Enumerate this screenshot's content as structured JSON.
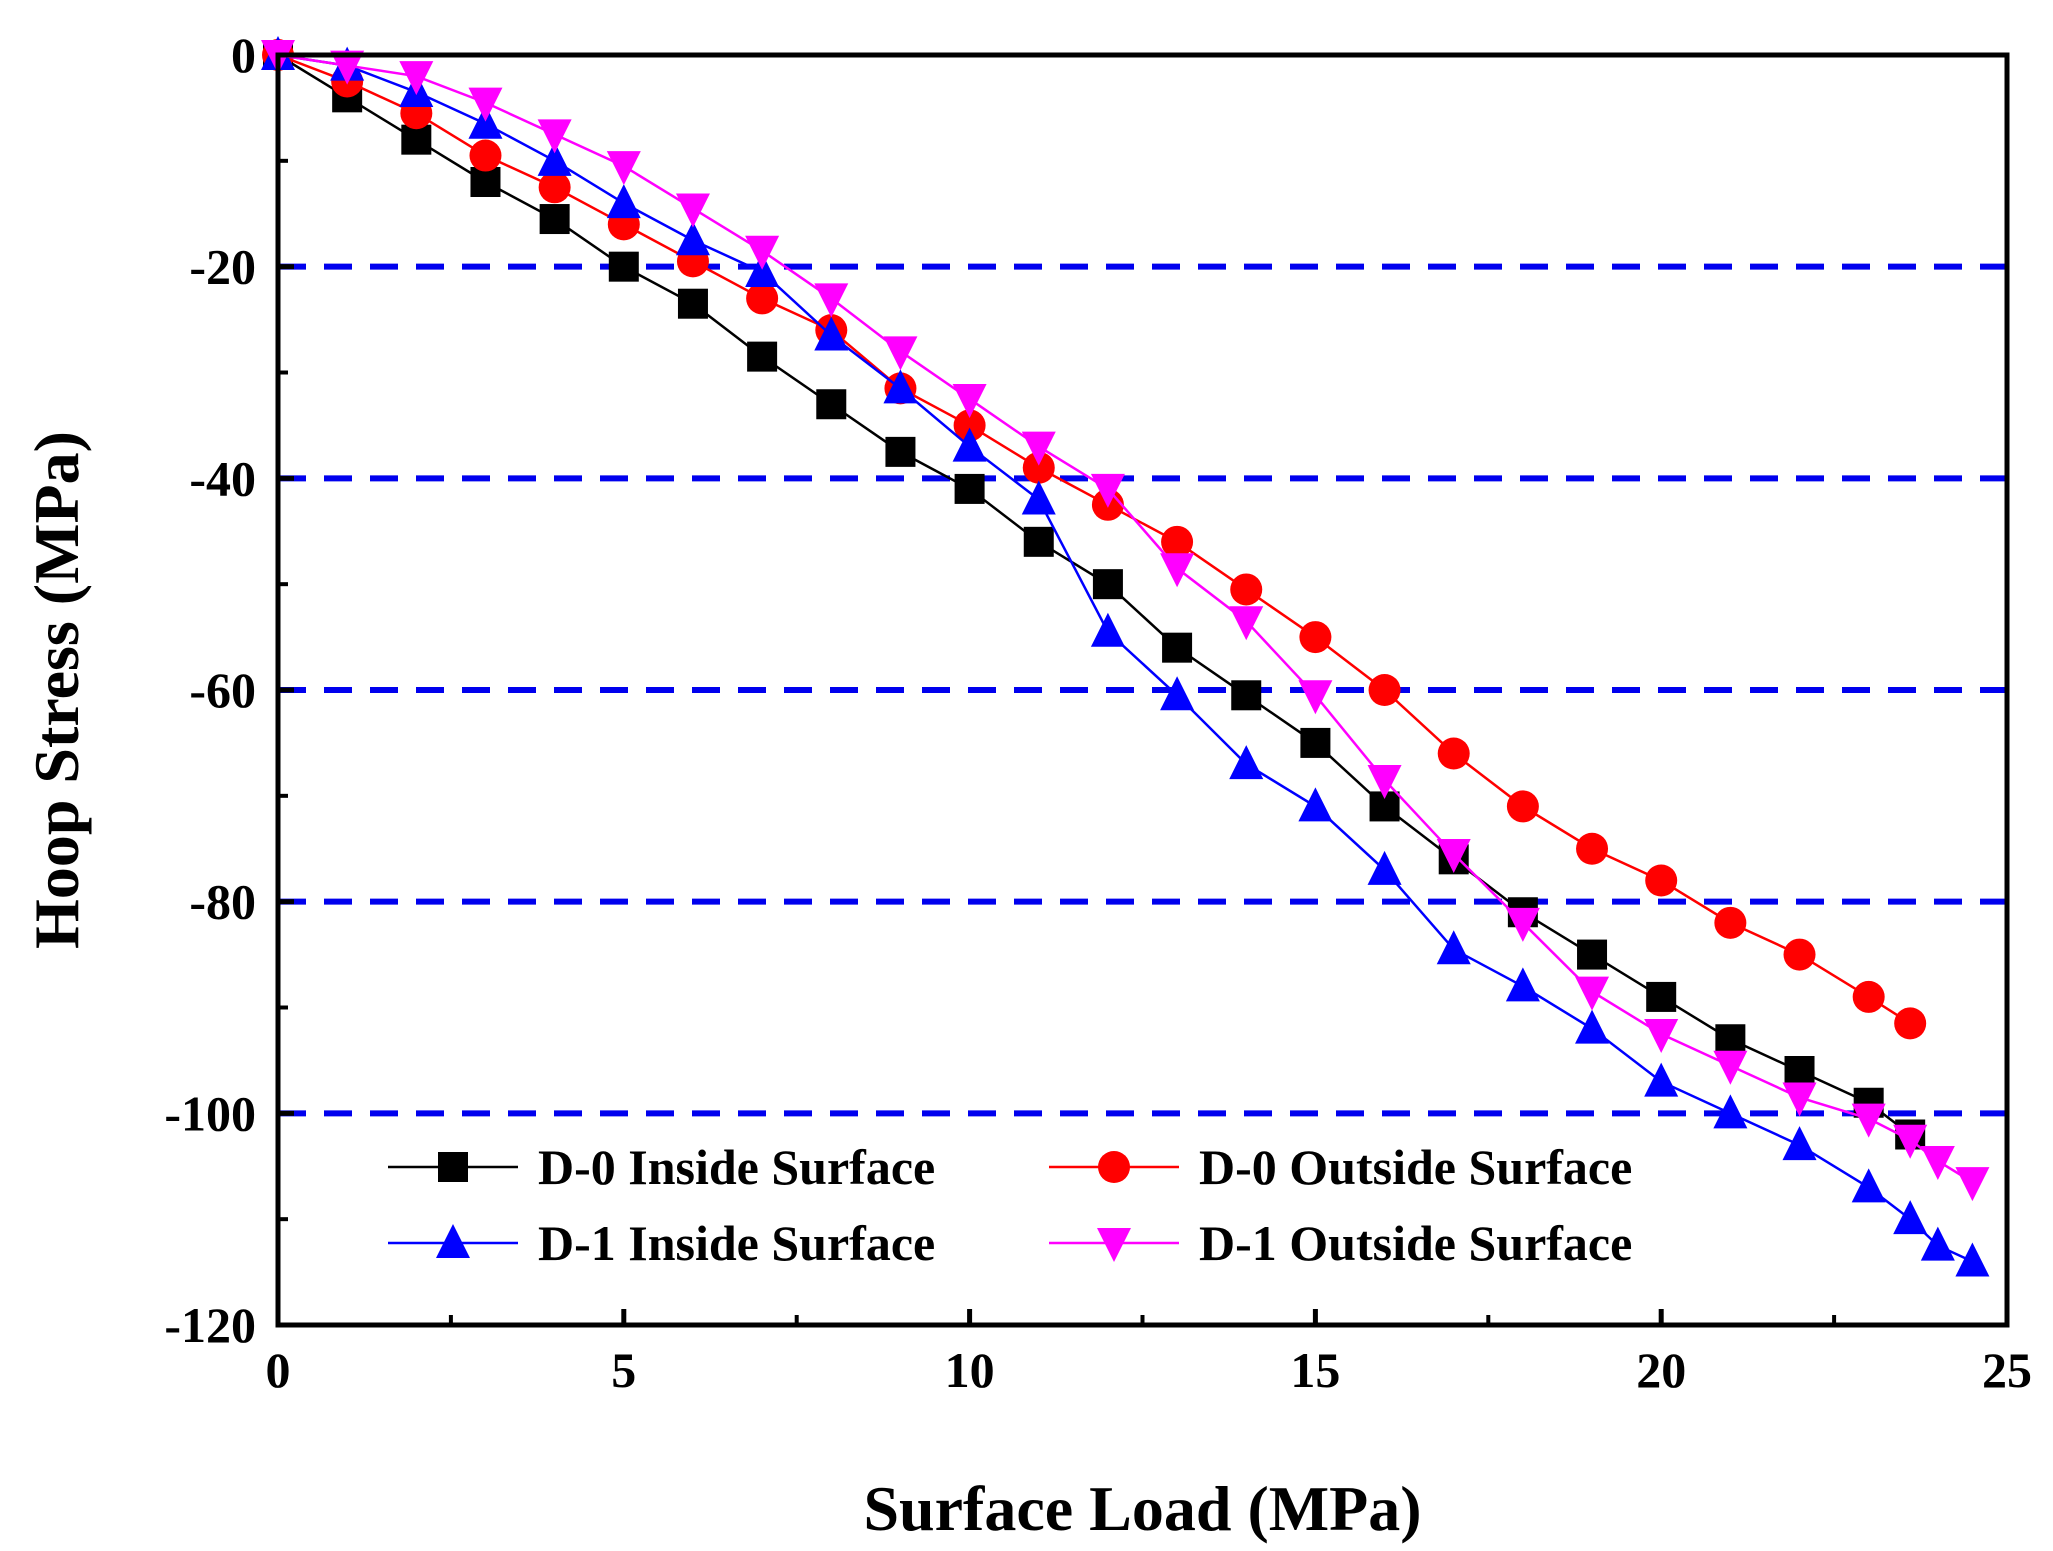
{
  "chart_data": {
    "type": "line",
    "title": "",
    "xlabel": "Surface Load (MPa)",
    "ylabel": "Hoop Stress (MPa)",
    "xlim": [
      0,
      25
    ],
    "ylim": [
      -120,
      0
    ],
    "xticks": [
      0,
      5,
      10,
      15,
      20,
      25
    ],
    "xtick_labels": [
      "0",
      "5",
      "10",
      "15",
      "20",
      "25"
    ],
    "yticks": [
      0,
      -20,
      -40,
      -60,
      -80,
      -100,
      -120
    ],
    "ytick_labels": [
      "0",
      "-20",
      "-40",
      "-60",
      "-80",
      "-100",
      "-120"
    ],
    "grid": "horizontal dashed at -20, -40, -60, -80, -100",
    "grid_color": "#0000ee",
    "legend_position": "bottom-center",
    "series": [
      {
        "name": "D-0 Inside Surface",
        "color": "#000000",
        "marker": "square",
        "x": [
          0,
          1,
          2,
          3,
          4,
          5,
          6,
          7,
          8,
          9,
          10,
          11,
          12,
          13,
          14,
          15,
          16,
          17,
          18,
          19,
          20,
          21,
          22,
          23,
          23.6
        ],
        "y": [
          0,
          -4,
          -8,
          -12,
          -15.5,
          -20,
          -23.5,
          -28.5,
          -33,
          -37.5,
          -41,
          -46,
          -50,
          -56,
          -60.5,
          -65,
          -71,
          -76,
          -81,
          -85,
          -89,
          -93,
          -96,
          -99,
          -102
        ]
      },
      {
        "name": "D-0 Outside Surface",
        "color": "#ff0000",
        "marker": "circle",
        "x": [
          0,
          1,
          2,
          3,
          4,
          5,
          6,
          7,
          8,
          9,
          10,
          11,
          12,
          13,
          14,
          15,
          16,
          17,
          18,
          19,
          20,
          21,
          22,
          23,
          23.6
        ],
        "y": [
          0,
          -2.5,
          -5.5,
          -9.5,
          -12.5,
          -16,
          -19.5,
          -23,
          -26,
          -31.5,
          -35,
          -39,
          -42.5,
          -46,
          -50.5,
          -55,
          -60,
          -66,
          -71,
          -75,
          -78,
          -82,
          -85,
          -89,
          -91.5
        ]
      },
      {
        "name": "D-1 Inside Surface",
        "color": "#0000ff",
        "marker": "triangle-up",
        "x": [
          0,
          1,
          2,
          3,
          4,
          5,
          6,
          7,
          8,
          9,
          10,
          11,
          12,
          13,
          14,
          15,
          16,
          17,
          18,
          19,
          20,
          21,
          22,
          23,
          23.6,
          24,
          24.5
        ],
        "y": [
          0,
          -1,
          -3.5,
          -6.5,
          -10,
          -14,
          -17.5,
          -20.5,
          -26.5,
          -31.5,
          -37,
          -42,
          -54.5,
          -60.5,
          -67,
          -71,
          -77,
          -84.5,
          -88,
          -92,
          -97,
          -100,
          -103,
          -107,
          -110,
          -112.5,
          -114
        ]
      },
      {
        "name": "D-1 Outside Surface",
        "color": "#ff00ff",
        "marker": "triangle-down",
        "x": [
          0,
          1,
          2,
          3,
          4,
          5,
          6,
          7,
          8,
          9,
          10,
          11,
          12,
          13,
          14,
          15,
          16,
          17,
          18,
          19,
          20,
          21,
          22,
          23,
          23.6,
          24,
          24.5
        ],
        "y": [
          0,
          -1,
          -2,
          -4.5,
          -7.5,
          -10.5,
          -14.5,
          -18.5,
          -23,
          -28,
          -32.5,
          -37,
          -41,
          -48.5,
          -53.5,
          -60.5,
          -68.5,
          -75.5,
          -82,
          -88.5,
          -92.5,
          -95.5,
          -98.5,
          -100.5,
          -102.5,
          -104.5,
          -106.5
        ]
      }
    ]
  }
}
